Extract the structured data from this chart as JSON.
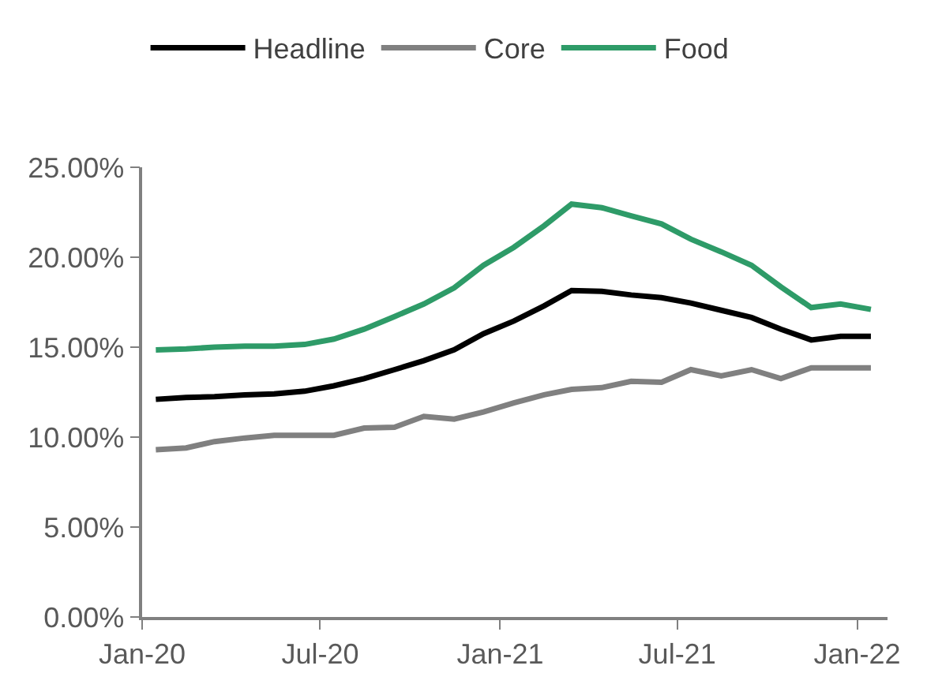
{
  "chart_data": {
    "type": "line",
    "x": [
      "2020-01-15",
      "2020-02-15",
      "2020-03-15",
      "2020-04-15",
      "2020-05-15",
      "2020-06-15",
      "2020-07-15",
      "2020-08-15",
      "2020-09-15",
      "2020-10-15",
      "2020-11-15",
      "2020-12-15",
      "2021-01-15",
      "2021-02-15",
      "2021-03-15",
      "2021-04-15",
      "2021-05-15",
      "2021-06-15",
      "2021-07-15",
      "2021-08-15",
      "2021-09-15",
      "2021-10-15",
      "2021-11-15",
      "2021-12-15",
      "2022-01-15"
    ],
    "series": [
      {
        "name": "Headline",
        "color": "#000000",
        "values": [
          12.1,
          12.2,
          12.25,
          12.35,
          12.4,
          12.55,
          12.85,
          13.25,
          13.75,
          14.25,
          14.85,
          15.75,
          16.45,
          17.3,
          18.15,
          18.1,
          17.9,
          17.75,
          17.45,
          17.05,
          16.65,
          16.0,
          15.4,
          15.6,
          15.6
        ]
      },
      {
        "name": "Core",
        "color": "#808080",
        "values": [
          9.3,
          9.4,
          9.75,
          9.95,
          10.1,
          10.1,
          10.1,
          10.5,
          10.55,
          11.15,
          11.0,
          11.4,
          11.9,
          12.35,
          12.65,
          12.75,
          13.1,
          13.05,
          13.75,
          13.4,
          13.75,
          13.25,
          13.85,
          13.85,
          13.85
        ]
      },
      {
        "name": "Food",
        "color": "#2e9b68",
        "values": [
          14.85,
          14.9,
          15.0,
          15.05,
          15.05,
          15.15,
          15.45,
          16.0,
          16.7,
          17.4,
          18.3,
          19.55,
          20.55,
          21.75,
          22.95,
          22.75,
          22.3,
          21.85,
          21.0,
          20.3,
          19.55,
          18.35,
          17.2,
          17.4,
          17.1
        ]
      }
    ],
    "xlim": [
      "2020-01-01",
      "2022-02-01"
    ],
    "xticks": [
      {
        "value": "2020-01-01",
        "label": "Jan-20"
      },
      {
        "value": "2020-07-01",
        "label": "Jul-20"
      },
      {
        "value": "2021-01-01",
        "label": "Jan-21"
      },
      {
        "value": "2021-07-01",
        "label": "Jul-21"
      },
      {
        "value": "2022-01-01",
        "label": "Jan-22"
      }
    ],
    "ylim": [
      0,
      25
    ],
    "yticks": [
      {
        "value": 0,
        "label": "0.00%"
      },
      {
        "value": 5,
        "label": "5.00%"
      },
      {
        "value": 10,
        "label": "10.00%"
      },
      {
        "value": 15,
        "label": "15.00%"
      },
      {
        "value": 20,
        "label": "20.00%"
      },
      {
        "value": 25,
        "label": "25.00%"
      }
    ],
    "legend": "top",
    "marker": "none",
    "line_style": "solid"
  }
}
